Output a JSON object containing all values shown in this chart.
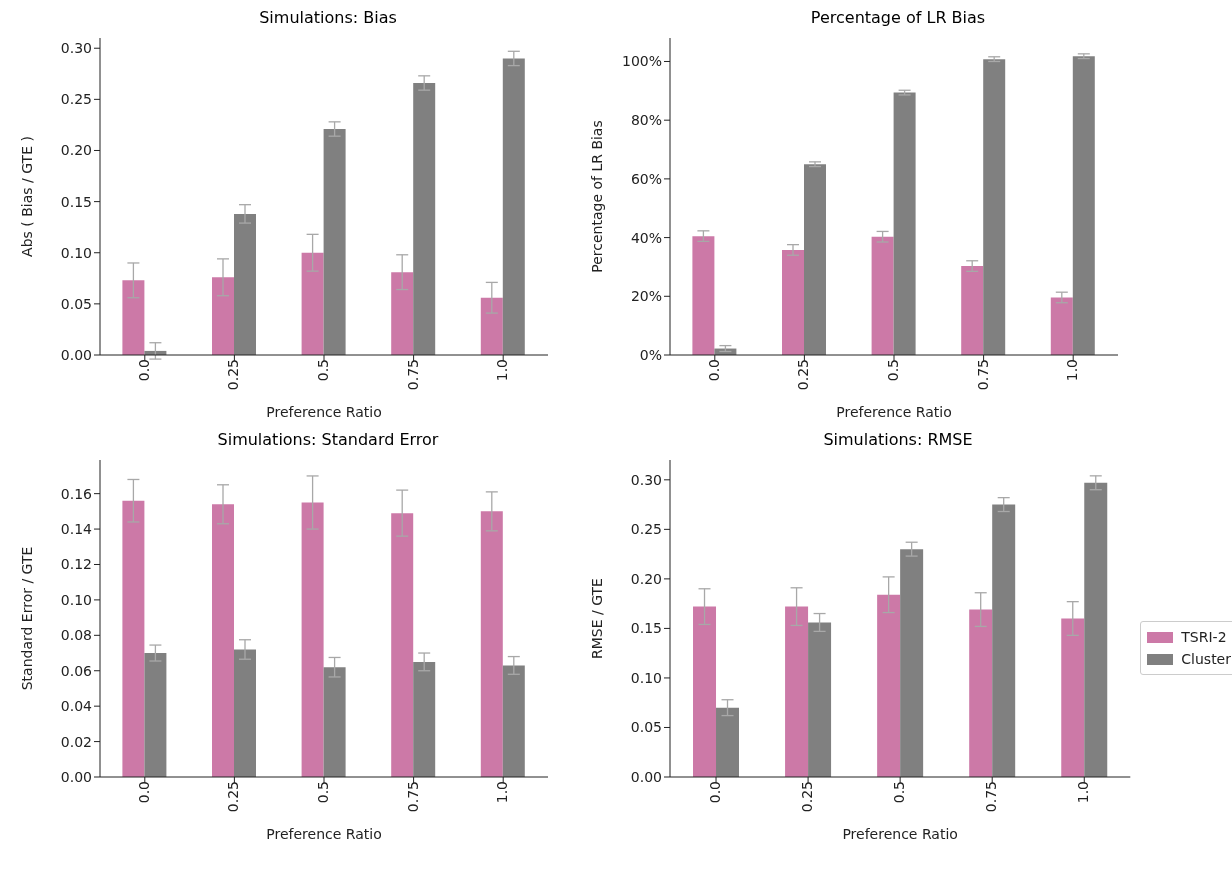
{
  "chart_data": [
    {
      "type": "bar",
      "title": "Simulations: Bias",
      "xlabel": "Preference Ratio",
      "ylabel": "Abs ( Bias / GTE )",
      "categories": [
        "0.0",
        "0.25",
        "0.5",
        "0.75",
        "1.0"
      ],
      "series": [
        {
          "color": "#cc79a7",
          "values": [
            0.073,
            0.076,
            0.1,
            0.081,
            0.056
          ],
          "errors": [
            0.017,
            0.018,
            0.018,
            0.017,
            0.015
          ]
        },
        {
          "color": "#808080",
          "values": [
            0.004,
            0.138,
            0.221,
            0.266,
            0.29
          ],
          "errors": [
            0.008,
            0.009,
            0.007,
            0.007,
            0.007
          ]
        }
      ],
      "ylim": [
        0,
        0.31
      ],
      "yticks": [
        {
          "value": 0,
          "label": "0.00"
        },
        {
          "value": 0.05,
          "label": "0.05"
        },
        {
          "value": 0.1,
          "label": "0.10"
        },
        {
          "value": 0.15,
          "label": "0.15"
        },
        {
          "value": 0.2,
          "label": "0.20"
        },
        {
          "value": 0.25,
          "label": "0.25"
        },
        {
          "value": 0.3,
          "label": "0.30"
        }
      ],
      "grid": false,
      "legend": false
    },
    {
      "type": "bar",
      "title": "Percentage of LR Bias",
      "xlabel": "Preference Ratio",
      "ylabel": "Percentage of LR Bias",
      "categories": [
        "0.0",
        "0.25",
        "0.5",
        "0.75",
        "1.0"
      ],
      "series": [
        {
          "color": "#cc79a7",
          "values": [
            40.5,
            35.8,
            40.3,
            30.3,
            19.6
          ],
          "errors": [
            1.8,
            1.8,
            1.8,
            1.8,
            1.8
          ]
        },
        {
          "color": "#808080",
          "values": [
            2.2,
            65,
            89.4,
            100.8,
            101.8
          ],
          "errors": [
            1,
            0.8,
            0.8,
            0.8,
            0.8
          ]
        }
      ],
      "ylim": [
        0,
        108
      ],
      "yticks": [
        {
          "value": 0,
          "label": "0%"
        },
        {
          "value": 20,
          "label": "20%"
        },
        {
          "value": 40,
          "label": "40%"
        },
        {
          "value": 60,
          "label": "60%"
        },
        {
          "value": 80,
          "label": "80%"
        },
        {
          "value": 100,
          "label": "100%"
        }
      ],
      "grid": false,
      "legend": false
    },
    {
      "type": "bar",
      "title": "Simulations: Standard Error",
      "xlabel": "Preference Ratio",
      "ylabel": "Standard Error / GTE",
      "categories": [
        "0.0",
        "0.25",
        "0.5",
        "0.75",
        "1.0"
      ],
      "series": [
        {
          "color": "#cc79a7",
          "values": [
            0.156,
            0.154,
            0.155,
            0.149,
            0.15
          ],
          "errors": [
            0.012,
            0.011,
            0.015,
            0.013,
            0.011
          ]
        },
        {
          "color": "#808080",
          "values": [
            0.07,
            0.072,
            0.062,
            0.065,
            0.063
          ],
          "errors": [
            0.0045,
            0.0055,
            0.0055,
            0.005,
            0.005
          ]
        }
      ],
      "ylim": [
        0,
        0.179
      ],
      "yticks": [
        {
          "value": 0,
          "label": "0.00"
        },
        {
          "value": 0.02,
          "label": "0.02"
        },
        {
          "value": 0.04,
          "label": "0.04"
        },
        {
          "value": 0.06,
          "label": "0.06"
        },
        {
          "value": 0.08,
          "label": "0.08"
        },
        {
          "value": 0.1,
          "label": "0.10"
        },
        {
          "value": 0.12,
          "label": "0.12"
        },
        {
          "value": 0.14,
          "label": "0.14"
        },
        {
          "value": 0.16,
          "label": "0.16"
        }
      ],
      "grid": false,
      "legend": false
    },
    {
      "type": "bar",
      "title": "Simulations: RMSE",
      "xlabel": "Preference Ratio",
      "ylabel": "RMSE / GTE",
      "categories": [
        "0.0",
        "0.25",
        "0.5",
        "0.75",
        "1.0"
      ],
      "series": [
        {
          "name": "TSRI-2",
          "color": "#cc79a7",
          "values": [
            0.172,
            0.172,
            0.184,
            0.169,
            0.16
          ],
          "errors": [
            0.018,
            0.019,
            0.018,
            0.017,
            0.017
          ]
        },
        {
          "name": "Cluster",
          "color": "#808080",
          "values": [
            0.07,
            0.156,
            0.23,
            0.275,
            0.297
          ],
          "errors": [
            0.008,
            0.009,
            0.007,
            0.007,
            0.007
          ]
        }
      ],
      "ylim": [
        0,
        0.32
      ],
      "yticks": [
        {
          "value": 0,
          "label": "0.00"
        },
        {
          "value": 0.05,
          "label": "0.05"
        },
        {
          "value": 0.1,
          "label": "0.10"
        },
        {
          "value": 0.15,
          "label": "0.15"
        },
        {
          "value": 0.2,
          "label": "0.20"
        },
        {
          "value": 0.25,
          "label": "0.25"
        },
        {
          "value": 0.3,
          "label": "0.30"
        }
      ],
      "grid": false,
      "legend": "right"
    }
  ]
}
